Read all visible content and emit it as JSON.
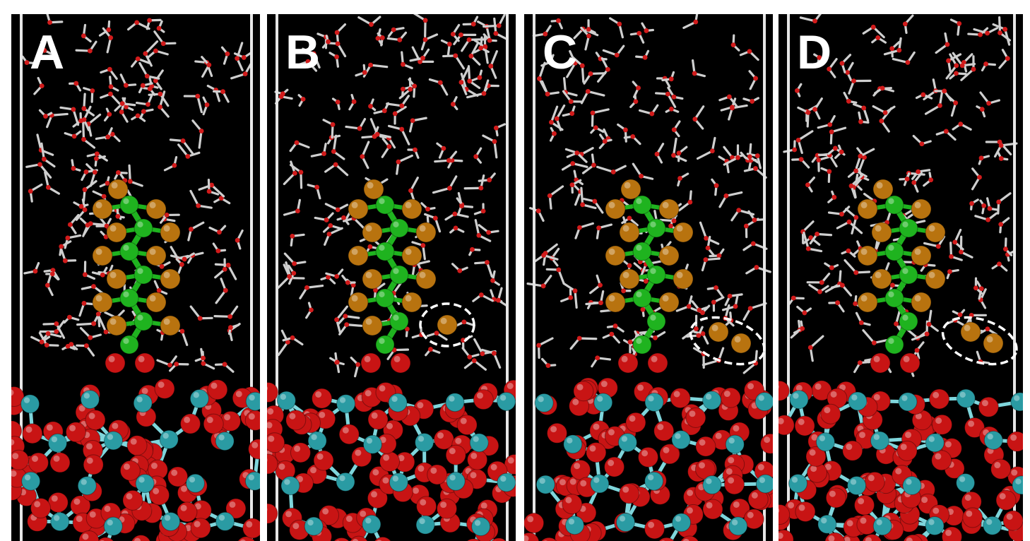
{
  "figure": {
    "panels": [
      {
        "label": "A",
        "detached_atoms": 0
      },
      {
        "label": "B",
        "detached_atoms": 1
      },
      {
        "label": "C",
        "detached_atoms": 2
      },
      {
        "label": "D",
        "detached_atoms": 2
      }
    ]
  },
  "colors": {
    "background": "#000000",
    "carbon": "#1fb31f",
    "fluorine": "#b8730f",
    "oxygen": "#c81414",
    "titanium": "#2a9ba3",
    "water_hydrogen": "#cfcfcf",
    "water_oxygen": "#d11b1b",
    "box_edge": "#e6e6e6",
    "highlight": "#ffffff"
  }
}
